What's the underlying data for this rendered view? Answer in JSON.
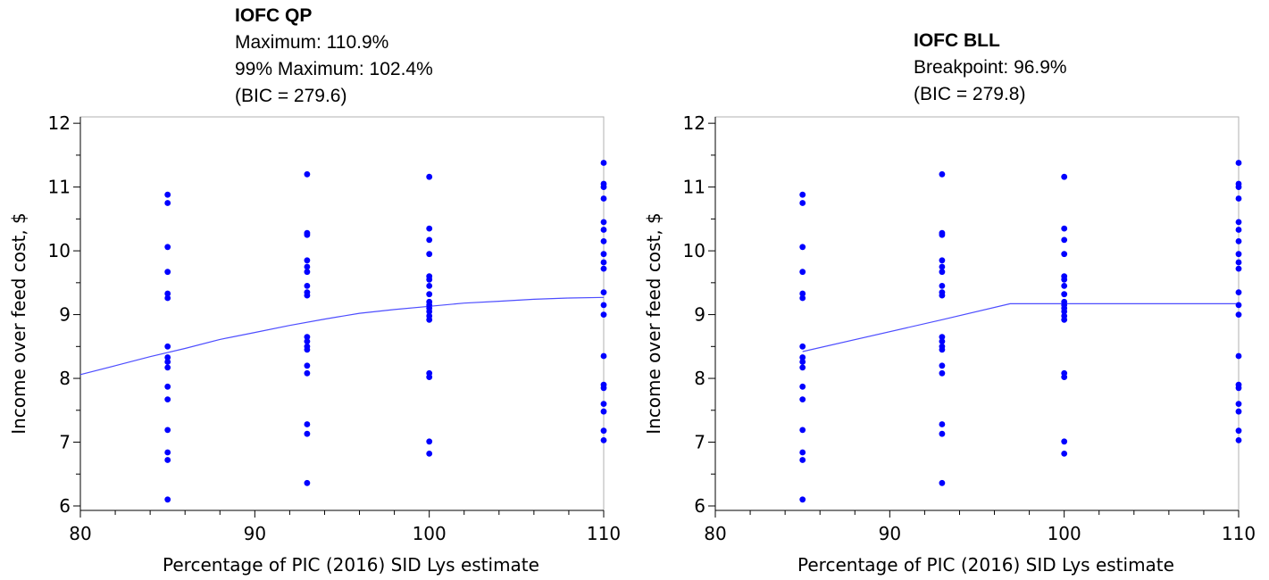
{
  "chart_data": [
    {
      "type": "scatter",
      "title": "IOFC QP",
      "annotations": [
        "Maximum: 110.9%",
        "99% Maximum: 102.4%",
        "(BIC = 279.6)"
      ],
      "xlabel": "Percentage of PIC (2016) SID Lys estimate",
      "ylabel": "Income over feed cost, $",
      "xlim": [
        80,
        110
      ],
      "ylim": [
        5.93,
        12.1
      ],
      "x_ticks": [
        80,
        90,
        100,
        110
      ],
      "y_ticks": [
        6,
        7,
        8,
        9,
        10,
        11,
        12
      ],
      "grid": false,
      "series": [
        {
          "type": "scatter",
          "color": "#0000ff",
          "points": [
            [
              85,
              10.88
            ],
            [
              85,
              10.75
            ],
            [
              85,
              10.06
            ],
            [
              85,
              9.67
            ],
            [
              85,
              9.33
            ],
            [
              85,
              9.26
            ],
            [
              85,
              8.5
            ],
            [
              85,
              8.33
            ],
            [
              85,
              8.26
            ],
            [
              85,
              8.17
            ],
            [
              85,
              7.87
            ],
            [
              85,
              7.67
            ],
            [
              85,
              7.19
            ],
            [
              85,
              6.84
            ],
            [
              85,
              6.72
            ],
            [
              85,
              6.1
            ],
            [
              93,
              11.2
            ],
            [
              93,
              10.28
            ],
            [
              93,
              10.25
            ],
            [
              93,
              9.85
            ],
            [
              93,
              9.75
            ],
            [
              93,
              9.67
            ],
            [
              93,
              9.45
            ],
            [
              93,
              9.35
            ],
            [
              93,
              9.3
            ],
            [
              93,
              8.65
            ],
            [
              93,
              8.58
            ],
            [
              93,
              8.5
            ],
            [
              93,
              8.45
            ],
            [
              93,
              8.2
            ],
            [
              93,
              8.08
            ],
            [
              93,
              7.28
            ],
            [
              93,
              7.13
            ],
            [
              93,
              6.36
            ],
            [
              100,
              11.16
            ],
            [
              100,
              10.35
            ],
            [
              100,
              10.17
            ],
            [
              100,
              9.95
            ],
            [
              100,
              9.6
            ],
            [
              100,
              9.55
            ],
            [
              100,
              9.45
            ],
            [
              100,
              9.32
            ],
            [
              100,
              9.2
            ],
            [
              100,
              9.15
            ],
            [
              100,
              9.1
            ],
            [
              100,
              9.05
            ],
            [
              100,
              8.98
            ],
            [
              100,
              8.92
            ],
            [
              100,
              8.08
            ],
            [
              100,
              8.02
            ],
            [
              100,
              7.01
            ],
            [
              100,
              6.82
            ],
            [
              110,
              11.38
            ],
            [
              110,
              11.05
            ],
            [
              110,
              11.0
            ],
            [
              110,
              10.82
            ],
            [
              110,
              10.45
            ],
            [
              110,
              10.33
            ],
            [
              110,
              10.15
            ],
            [
              110,
              9.95
            ],
            [
              110,
              9.82
            ],
            [
              110,
              9.72
            ],
            [
              110,
              9.35
            ],
            [
              110,
              9.15
            ],
            [
              110,
              9.0
            ],
            [
              110,
              8.35
            ],
            [
              110,
              7.9
            ],
            [
              110,
              7.85
            ],
            [
              110,
              7.6
            ],
            [
              110,
              7.48
            ],
            [
              110,
              7.18
            ],
            [
              110,
              7.03
            ]
          ]
        },
        {
          "type": "line",
          "color": "#4d4dff",
          "points": [
            [
              80,
              8.06
            ],
            [
              82,
              8.2
            ],
            [
              84,
              8.34
            ],
            [
              86,
              8.47
            ],
            [
              88,
              8.61
            ],
            [
              90,
              8.72
            ],
            [
              92,
              8.83
            ],
            [
              94,
              8.93
            ],
            [
              96,
              9.02
            ],
            [
              98,
              9.08
            ],
            [
              100,
              9.13
            ],
            [
              102,
              9.18
            ],
            [
              104,
              9.21
            ],
            [
              106,
              9.24
            ],
            [
              108,
              9.26
            ],
            [
              110,
              9.27
            ]
          ]
        }
      ]
    },
    {
      "type": "scatter",
      "title": "IOFC BLL",
      "annotations": [
        "Breakpoint: 96.9%",
        "(BIC = 279.8)"
      ],
      "xlabel": "Percentage of PIC (2016) SID Lys estimate",
      "ylabel": "Income over feed cost, $",
      "xlim": [
        80,
        110
      ],
      "ylim": [
        5.93,
        12.1
      ],
      "x_ticks": [
        80,
        90,
        100,
        110
      ],
      "y_ticks": [
        6,
        7,
        8,
        9,
        10,
        11,
        12
      ],
      "grid": false,
      "series": [
        {
          "type": "scatter",
          "color": "#0000ff",
          "points": [
            [
              85,
              10.88
            ],
            [
              85,
              10.75
            ],
            [
              85,
              10.06
            ],
            [
              85,
              9.67
            ],
            [
              85,
              9.33
            ],
            [
              85,
              9.26
            ],
            [
              85,
              8.5
            ],
            [
              85,
              8.33
            ],
            [
              85,
              8.26
            ],
            [
              85,
              8.17
            ],
            [
              85,
              7.87
            ],
            [
              85,
              7.67
            ],
            [
              85,
              7.19
            ],
            [
              85,
              6.84
            ],
            [
              85,
              6.72
            ],
            [
              85,
              6.1
            ],
            [
              93,
              11.2
            ],
            [
              93,
              10.28
            ],
            [
              93,
              10.25
            ],
            [
              93,
              9.85
            ],
            [
              93,
              9.75
            ],
            [
              93,
              9.67
            ],
            [
              93,
              9.45
            ],
            [
              93,
              9.35
            ],
            [
              93,
              9.3
            ],
            [
              93,
              8.65
            ],
            [
              93,
              8.58
            ],
            [
              93,
              8.5
            ],
            [
              93,
              8.45
            ],
            [
              93,
              8.2
            ],
            [
              93,
              8.08
            ],
            [
              93,
              7.28
            ],
            [
              93,
              7.13
            ],
            [
              93,
              6.36
            ],
            [
              100,
              11.16
            ],
            [
              100,
              10.35
            ],
            [
              100,
              10.17
            ],
            [
              100,
              9.95
            ],
            [
              100,
              9.6
            ],
            [
              100,
              9.55
            ],
            [
              100,
              9.45
            ],
            [
              100,
              9.32
            ],
            [
              100,
              9.2
            ],
            [
              100,
              9.15
            ],
            [
              100,
              9.1
            ],
            [
              100,
              9.05
            ],
            [
              100,
              8.98
            ],
            [
              100,
              8.92
            ],
            [
              100,
              8.08
            ],
            [
              100,
              8.02
            ],
            [
              100,
              7.01
            ],
            [
              100,
              6.82
            ],
            [
              110,
              11.38
            ],
            [
              110,
              11.05
            ],
            [
              110,
              11.0
            ],
            [
              110,
              10.82
            ],
            [
              110,
              10.45
            ],
            [
              110,
              10.33
            ],
            [
              110,
              10.15
            ],
            [
              110,
              9.95
            ],
            [
              110,
              9.82
            ],
            [
              110,
              9.72
            ],
            [
              110,
              9.35
            ],
            [
              110,
              9.15
            ],
            [
              110,
              9.0
            ],
            [
              110,
              8.35
            ],
            [
              110,
              7.9
            ],
            [
              110,
              7.85
            ],
            [
              110,
              7.6
            ],
            [
              110,
              7.48
            ],
            [
              110,
              7.18
            ],
            [
              110,
              7.03
            ]
          ]
        },
        {
          "type": "line",
          "color": "#4d4dff",
          "points": [
            [
              85,
              8.42
            ],
            [
              93,
              8.92
            ],
            [
              96.9,
              9.17
            ],
            [
              110,
              9.17
            ]
          ]
        }
      ]
    }
  ]
}
